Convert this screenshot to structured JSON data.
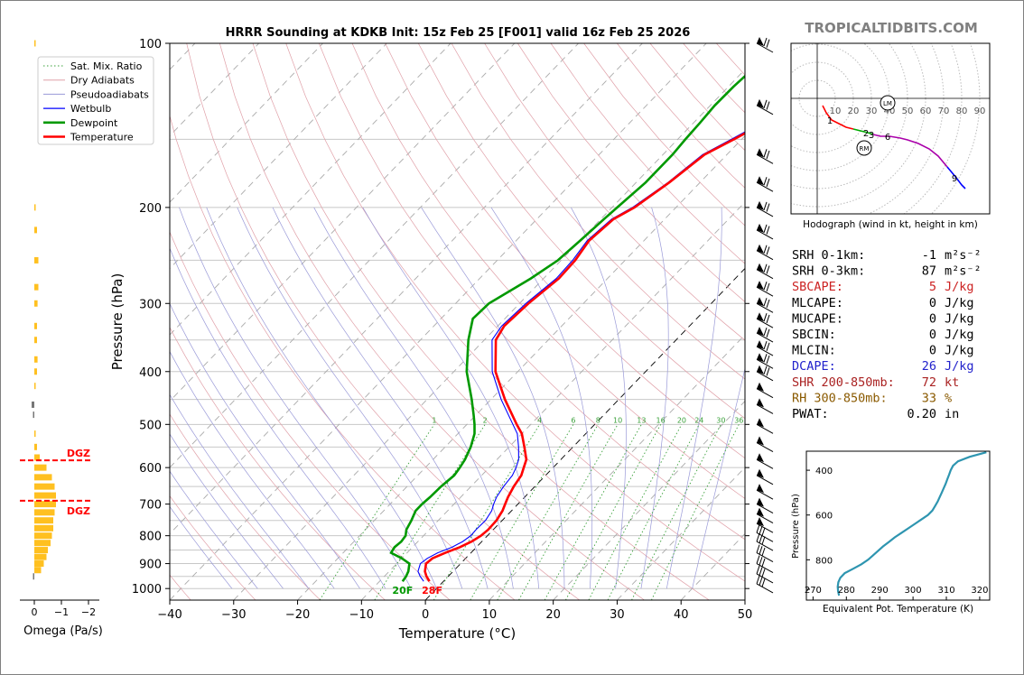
{
  "brand": "TROPICALTIDBITS.COM",
  "colors": {
    "temperature": "#ff0000",
    "dewpoint": "#009900",
    "wetbulb": "#0000ff",
    "dgz": "#ff0000",
    "omega": "#ffc020",
    "hodo_seg1": "#ff0000",
    "hodo_seg2": "#00aa00",
    "hodo_seg3": "#aa00aa",
    "hodo_seg4": "#0000ff",
    "theta_e": "#2e95b0"
  },
  "chart_data": [
    {
      "type": "line",
      "name": "skew-t",
      "title": "HRRR Sounding at KDKB Init: 15z Feb 25 [F001] valid 16z Feb 25 2026",
      "xlabel": "Temperature (°C)",
      "ylabel": "Pressure (hPa)",
      "xlim": [
        -40,
        50
      ],
      "ylim": [
        1050,
        100
      ],
      "yscale": "log",
      "x_ticks": [
        "−40",
        "−30",
        "−20",
        "−10",
        "0",
        "10",
        "20",
        "30",
        "40",
        "50"
      ],
      "x_tick_values": [
        -40,
        -30,
        -20,
        -10,
        0,
        10,
        20,
        30,
        40,
        50
      ],
      "y_ticks": [
        "100",
        "200",
        "300",
        "400",
        "500",
        "600",
        "700",
        "800",
        "900",
        "1000"
      ],
      "y_tick_values": [
        100,
        200,
        300,
        400,
        500,
        600,
        700,
        800,
        900,
        1000
      ],
      "legend": {
        "placement": "top-left",
        "entries": [
          "Sat. Mix. Ratio",
          "Dry Adiabats",
          "Pseudoadiabats",
          "Wetbulb",
          "Dewpoint",
          "Temperature"
        ]
      },
      "mixing_ratio_labels": [
        "1",
        "2",
        "4",
        "6",
        "8",
        "10",
        "13",
        "16",
        "20",
        "24",
        "30",
        "36"
      ],
      "mixing_ratio_values": [
        1,
        2,
        4,
        6,
        8,
        10,
        13,
        16,
        20,
        24,
        30,
        36
      ],
      "surface_labels": {
        "dewpoint": "20F",
        "temperature": "28F"
      },
      "series": [
        {
          "name": "Temperature",
          "pressure": [
            970,
            950,
            930,
            900,
            880,
            860,
            840,
            820,
            800,
            780,
            750,
            720,
            700,
            680,
            650,
            620,
            600,
            580,
            550,
            520,
            500,
            450,
            400,
            350,
            330,
            300,
            270,
            250,
            230,
            210,
            200,
            180,
            160,
            150,
            140,
            130,
            120,
            110,
            100
          ],
          "t": [
            -2.2,
            -3.4,
            -4.4,
            -5.4,
            -5.2,
            -4.0,
            -2.6,
            -1.6,
            -1.0,
            -0.8,
            -0.9,
            -1.4,
            -2.0,
            -2.6,
            -3.3,
            -3.8,
            -4.6,
            -5.4,
            -7.6,
            -10.0,
            -12.2,
            -17.8,
            -23.5,
            -28.2,
            -29.0,
            -28.6,
            -27.6,
            -27.8,
            -28.6,
            -28.0,
            -26.5,
            -24.8,
            -23.5,
            -21.2,
            -19.0,
            -15.4,
            -12.0,
            -8.8,
            -6.0
          ]
        },
        {
          "name": "Dewpoint",
          "pressure": [
            970,
            950,
            930,
            900,
            880,
            860,
            840,
            820,
            800,
            780,
            750,
            720,
            700,
            680,
            650,
            620,
            600,
            580,
            550,
            520,
            500,
            480,
            450,
            400,
            350,
            320,
            300,
            270,
            250,
            230,
            210,
            200,
            180,
            160,
            150,
            140,
            130,
            120,
            110,
            100
          ],
          "t": [
            -6.4,
            -6.6,
            -7.0,
            -8.0,
            -10.0,
            -12.5,
            -12.8,
            -12.6,
            -12.8,
            -13.6,
            -14.2,
            -15.0,
            -15.0,
            -14.8,
            -14.7,
            -14.3,
            -14.6,
            -15.0,
            -16.0,
            -17.4,
            -18.8,
            -20.4,
            -23.0,
            -28.0,
            -32.5,
            -35.0,
            -34.8,
            -32.0,
            -30.5,
            -30.0,
            -29.5,
            -29.2,
            -28.5,
            -28.5,
            -28.8,
            -29.0,
            -29.3,
            -29.2,
            -28.8,
            -27.8
          ]
        },
        {
          "name": "Wetbulb",
          "pressure": [
            970,
            950,
            930,
            900,
            880,
            860,
            840,
            820,
            800,
            780,
            750,
            720,
            700,
            680,
            650,
            620,
            600,
            580,
            550,
            520,
            500,
            450,
            400,
            350,
            330,
            300,
            270,
            250,
            230,
            210,
            200,
            180,
            160,
            150,
            140,
            130,
            120,
            110,
            100
          ],
          "t": [
            -3.1,
            -4.4,
            -5.5,
            -6.3,
            -6.0,
            -5.2,
            -3.8,
            -3.0,
            -2.6,
            -2.7,
            -2.6,
            -3.1,
            -3.8,
            -4.4,
            -4.9,
            -5.2,
            -5.8,
            -6.6,
            -8.5,
            -10.7,
            -12.8,
            -18.4,
            -24.0,
            -28.8,
            -29.4,
            -29.0,
            -28.0,
            -28.2,
            -28.9,
            -28.3,
            -26.8,
            -25.0,
            -23.8,
            -21.6,
            -19.4,
            -15.8,
            -12.4,
            -9.2,
            -6.4
          ]
        }
      ],
      "wind_barbs_pressure": [
        100,
        130,
        160,
        180,
        200,
        220,
        240,
        260,
        280,
        300,
        320,
        340,
        360,
        380,
        400,
        430,
        460,
        500,
        540,
        580,
        620,
        660,
        700,
        730,
        760,
        790,
        820,
        860,
        900,
        940,
        980
      ]
    },
    {
      "type": "bar",
      "name": "omega",
      "xlabel": "Omega (Pa/s)",
      "x_ticks": [
        "0",
        "−1",
        "−2"
      ],
      "x_tick_values": [
        0,
        -1,
        -2
      ],
      "dgz_label": "DGZ",
      "dgz_pressures": [
        582,
        690
      ],
      "pressure": [
        100,
        200,
        220,
        250,
        280,
        300,
        330,
        350,
        380,
        400,
        425,
        460,
        480,
        520,
        550,
        575,
        600,
        625,
        650,
        675,
        700,
        725,
        750,
        775,
        800,
        825,
        850,
        875,
        900,
        925,
        950
      ],
      "omega": [
        -0.05,
        -0.05,
        -0.1,
        -0.15,
        -0.15,
        -0.12,
        -0.1,
        -0.1,
        -0.12,
        -0.1,
        -0.05,
        0.1,
        0.05,
        -0.05,
        -0.1,
        -0.2,
        -0.45,
        -0.65,
        -0.75,
        -0.8,
        -0.8,
        -0.75,
        -0.7,
        -0.7,
        -0.65,
        -0.6,
        -0.5,
        -0.45,
        -0.35,
        -0.25,
        0.05
      ]
    },
    {
      "type": "line",
      "name": "hodograph",
      "caption": "Hodograph (wind in kt, height in km)",
      "ring_labels": [
        "10",
        "20",
        "30",
        "40",
        "50",
        "60",
        "70",
        "80",
        "90"
      ],
      "ring_values": [
        10,
        20,
        30,
        40,
        50,
        60,
        70,
        80,
        90
      ],
      "height_labels": [
        "1",
        "2",
        "3",
        "6",
        "9"
      ],
      "markers": [
        "LM",
        "RM"
      ],
      "u": [
        3,
        5,
        8,
        12,
        16,
        20,
        24,
        28,
        31,
        35,
        40,
        46,
        50,
        56,
        62,
        67,
        72,
        77,
        80,
        82
      ],
      "v": [
        -4,
        -8,
        -12,
        -14,
        -16,
        -17,
        -18,
        -19,
        -20,
        -21,
        -21,
        -22,
        -23,
        -25,
        -28,
        -32,
        -38,
        -44,
        -48,
        -50
      ]
    },
    {
      "type": "line",
      "name": "theta-e profile",
      "xlabel": "Equivalent Pot. Temperature (K)",
      "ylabel": "Pressure (hPa)",
      "xlim": [
        268,
        323
      ],
      "ylim": [
        980,
        315
      ],
      "x_ticks": [
        "270",
        "280",
        "290",
        "300",
        "310",
        "320"
      ],
      "x_tick_values": [
        270,
        280,
        290,
        300,
        310,
        320
      ],
      "y_ticks": [
        "400",
        "600",
        "800"
      ],
      "y_tick_values": [
        400,
        600,
        800
      ],
      "pressure": [
        960,
        940,
        920,
        900,
        880,
        860,
        840,
        820,
        800,
        780,
        760,
        740,
        720,
        700,
        680,
        660,
        640,
        620,
        600,
        580,
        560,
        540,
        520,
        500,
        480,
        460,
        440,
        420,
        400,
        380,
        360,
        340,
        320
      ],
      "theta_e": [
        277.8,
        277.5,
        277.4,
        277.6,
        278.2,
        279.5,
        282,
        284.5,
        286.5,
        288,
        289.5,
        291,
        292.8,
        294.5,
        296.5,
        298.5,
        300.5,
        302.5,
        304.5,
        305.8,
        306.6,
        307.4,
        308,
        308.6,
        309.2,
        309.8,
        310.3,
        310.8,
        311.3,
        312,
        313.5,
        317,
        322
      ]
    }
  ],
  "params": {
    "rows": [
      {
        "label": "SRH 0-1km:",
        "value": "-1",
        "unit": "m²s⁻²",
        "color": "#000000"
      },
      {
        "label": "SRH 0-3km:",
        "value": "87",
        "unit": "m²s⁻²",
        "color": "#000000"
      },
      {
        "label": "SBCAPE:",
        "value": "5",
        "unit": "J/kg",
        "color": "#cc2222"
      },
      {
        "label": "MLCAPE:",
        "value": "0",
        "unit": "J/kg",
        "color": "#000000"
      },
      {
        "label": "MUCAPE:",
        "value": "0",
        "unit": "J/kg",
        "color": "#000000"
      },
      {
        "label": "SBCIN:",
        "value": "0",
        "unit": "J/kg",
        "color": "#000000"
      },
      {
        "label": "MLCIN:",
        "value": "0",
        "unit": "J/kg",
        "color": "#000000"
      },
      {
        "label": "DCAPE:",
        "value": "26",
        "unit": "J/kg",
        "color": "#2222cc"
      },
      {
        "label": "SHR 200-850mb:",
        "value": "72",
        "unit": "kt",
        "color": "#aa2222"
      },
      {
        "label": "RH 300-850mb:",
        "value": "33",
        "unit": "%",
        "color": "#8a5a00"
      },
      {
        "label": "PWAT:",
        "value": "0.20",
        "unit": "in",
        "color": "#000000"
      }
    ]
  }
}
